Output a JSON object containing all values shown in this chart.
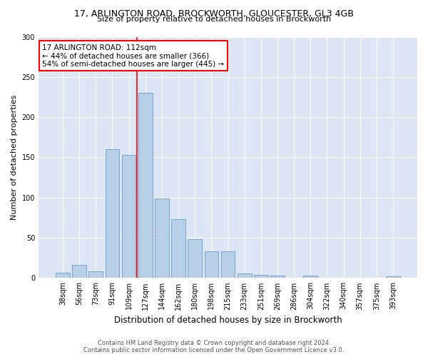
{
  "title1": "17, ARLINGTON ROAD, BROCKWORTH, GLOUCESTER, GL3 4GB",
  "title2": "Size of property relative to detached houses in Brockworth",
  "xlabel": "Distribution of detached houses by size in Brockworth",
  "ylabel": "Number of detached properties",
  "categories": [
    "38sqm",
    "56sqm",
    "73sqm",
    "91sqm",
    "109sqm",
    "127sqm",
    "144sqm",
    "162sqm",
    "180sqm",
    "198sqm",
    "215sqm",
    "233sqm",
    "251sqm",
    "269sqm",
    "286sqm",
    "304sqm",
    "322sqm",
    "340sqm",
    "357sqm",
    "375sqm",
    "393sqm"
  ],
  "values": [
    7,
    16,
    8,
    160,
    153,
    230,
    99,
    73,
    48,
    33,
    33,
    6,
    4,
    3,
    0,
    3,
    0,
    0,
    0,
    0,
    2
  ],
  "bar_color": "#b8cfe8",
  "bar_edge_color": "#6699cc",
  "vline_x": 4.5,
  "vline_color": "red",
  "annotation_line1": "17 ARLINGTON ROAD: 112sqm",
  "annotation_line2": "← 44% of detached houses are smaller (366)",
  "annotation_line3": "54% of semi-detached houses are larger (445) →",
  "annotation_box_color": "white",
  "annotation_box_edge_color": "red",
  "bg_color": "#dce6f5",
  "footer1": "Contains HM Land Registry data © Crown copyright and database right 2024.",
  "footer2": "Contains public sector information licensed under the Open Government Licence v3.0.",
  "ylim": [
    0,
    300
  ],
  "yticks": [
    0,
    50,
    100,
    150,
    200,
    250,
    300
  ]
}
